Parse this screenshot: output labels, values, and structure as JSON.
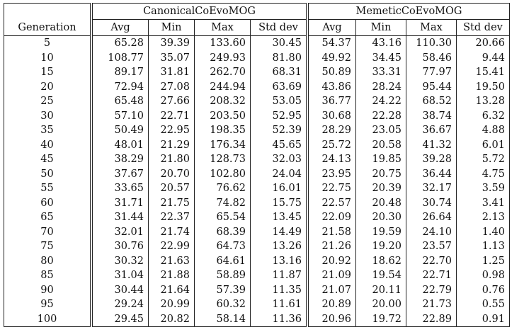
{
  "groups": [
    "CanonicalCoEvoMOG",
    "MemeticCoEvoMOG"
  ],
  "columns": [
    "Generation",
    "Avg",
    "Min",
    "Max",
    "Std dev",
    "Avg",
    "Min",
    "Max",
    "Std dev"
  ],
  "rows": [
    [
      "5",
      "65.28",
      "39.39",
      "133.60",
      "30.45",
      "54.37",
      "43.16",
      "110.30",
      "20.66"
    ],
    [
      "10",
      "108.77",
      "35.07",
      "249.93",
      "81.80",
      "49.92",
      "34.45",
      "58.46",
      "9.44"
    ],
    [
      "15",
      "89.17",
      "31.81",
      "262.70",
      "68.31",
      "50.89",
      "33.31",
      "77.97",
      "15.41"
    ],
    [
      "20",
      "72.94",
      "27.08",
      "244.94",
      "63.69",
      "43.86",
      "28.24",
      "95.44",
      "19.50"
    ],
    [
      "25",
      "65.48",
      "27.66",
      "208.32",
      "53.05",
      "36.77",
      "24.22",
      "68.52",
      "13.28"
    ],
    [
      "30",
      "57.10",
      "22.71",
      "203.50",
      "52.95",
      "30.68",
      "22.28",
      "38.74",
      "6.32"
    ],
    [
      "35",
      "50.49",
      "22.95",
      "198.35",
      "52.39",
      "28.29",
      "23.05",
      "36.67",
      "4.88"
    ],
    [
      "40",
      "48.01",
      "21.29",
      "176.34",
      "45.65",
      "25.72",
      "20.58",
      "41.32",
      "6.01"
    ],
    [
      "45",
      "38.29",
      "21.80",
      "128.73",
      "32.03",
      "24.13",
      "19.85",
      "39.28",
      "5.72"
    ],
    [
      "50",
      "37.67",
      "20.70",
      "102.80",
      "24.04",
      "23.95",
      "20.75",
      "36.44",
      "4.75"
    ],
    [
      "55",
      "33.65",
      "20.57",
      "76.62",
      "16.01",
      "22.75",
      "20.39",
      "32.17",
      "3.59"
    ],
    [
      "60",
      "31.71",
      "21.75",
      "74.82",
      "15.75",
      "22.57",
      "20.48",
      "30.74",
      "3.41"
    ],
    [
      "65",
      "31.44",
      "22.37",
      "65.54",
      "13.45",
      "22.09",
      "20.30",
      "26.64",
      "2.13"
    ],
    [
      "70",
      "32.01",
      "21.74",
      "68.39",
      "14.49",
      "21.58",
      "19.59",
      "24.10",
      "1.40"
    ],
    [
      "75",
      "30.76",
      "22.99",
      "64.73",
      "13.26",
      "21.26",
      "19.20",
      "23.57",
      "1.13"
    ],
    [
      "80",
      "30.32",
      "21.63",
      "64.61",
      "13.16",
      "20.92",
      "18.62",
      "22.70",
      "1.25"
    ],
    [
      "85",
      "31.04",
      "21.88",
      "58.89",
      "11.87",
      "21.09",
      "19.54",
      "22.71",
      "0.98"
    ],
    [
      "90",
      "30.44",
      "21.64",
      "57.39",
      "11.35",
      "21.07",
      "20.11",
      "22.79",
      "0.76"
    ],
    [
      "95",
      "29.24",
      "20.99",
      "60.32",
      "11.61",
      "20.89",
      "20.00",
      "21.73",
      "0.55"
    ],
    [
      "100",
      "29.45",
      "20.82",
      "58.14",
      "11.36",
      "20.96",
      "19.72",
      "22.89",
      "0.91"
    ]
  ]
}
